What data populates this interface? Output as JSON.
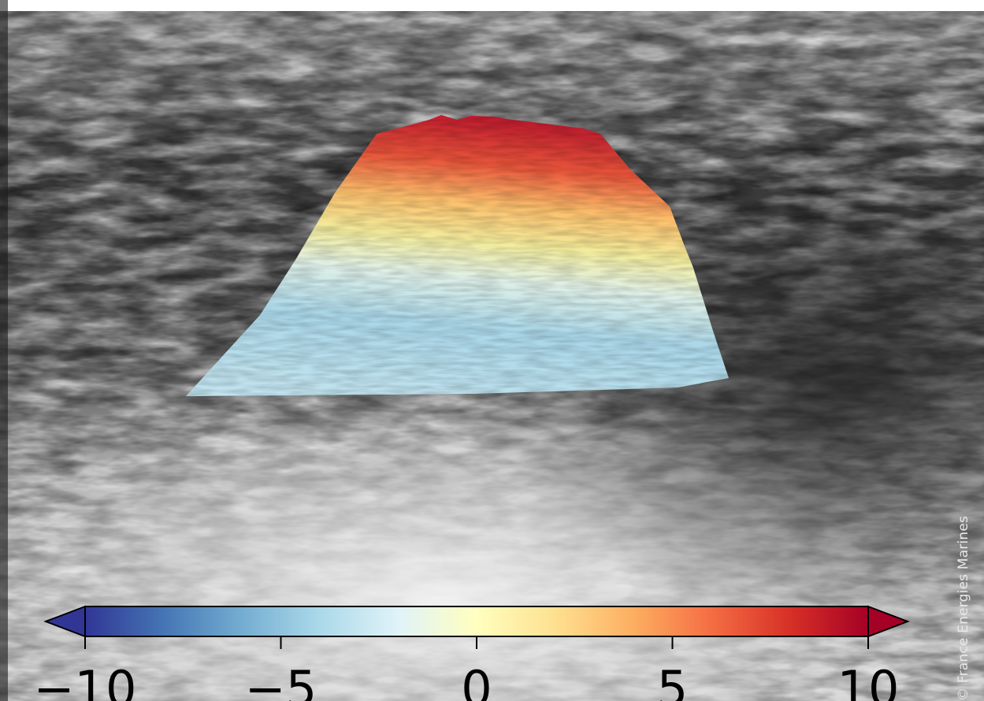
{
  "photo": {
    "subject": "sea-surface-photo",
    "overlay": "wave-elevation-surface"
  },
  "colorbar": {
    "ticks": [
      {
        "value": -10,
        "label": "−10"
      },
      {
        "value": -5,
        "label": "−5"
      },
      {
        "value": 0,
        "label": "0"
      },
      {
        "value": 5,
        "label": "5"
      },
      {
        "value": 10,
        "label": "10"
      }
    ],
    "min": -10,
    "max": 10,
    "extend": "both",
    "colors": [
      "#313695",
      "#4575b4",
      "#74add1",
      "#abd9e9",
      "#e0f3f8",
      "#ffffbf",
      "#fee090",
      "#fdae61",
      "#f46d43",
      "#d73027",
      "#a50026"
    ]
  },
  "credit": "© France Energies Marines"
}
